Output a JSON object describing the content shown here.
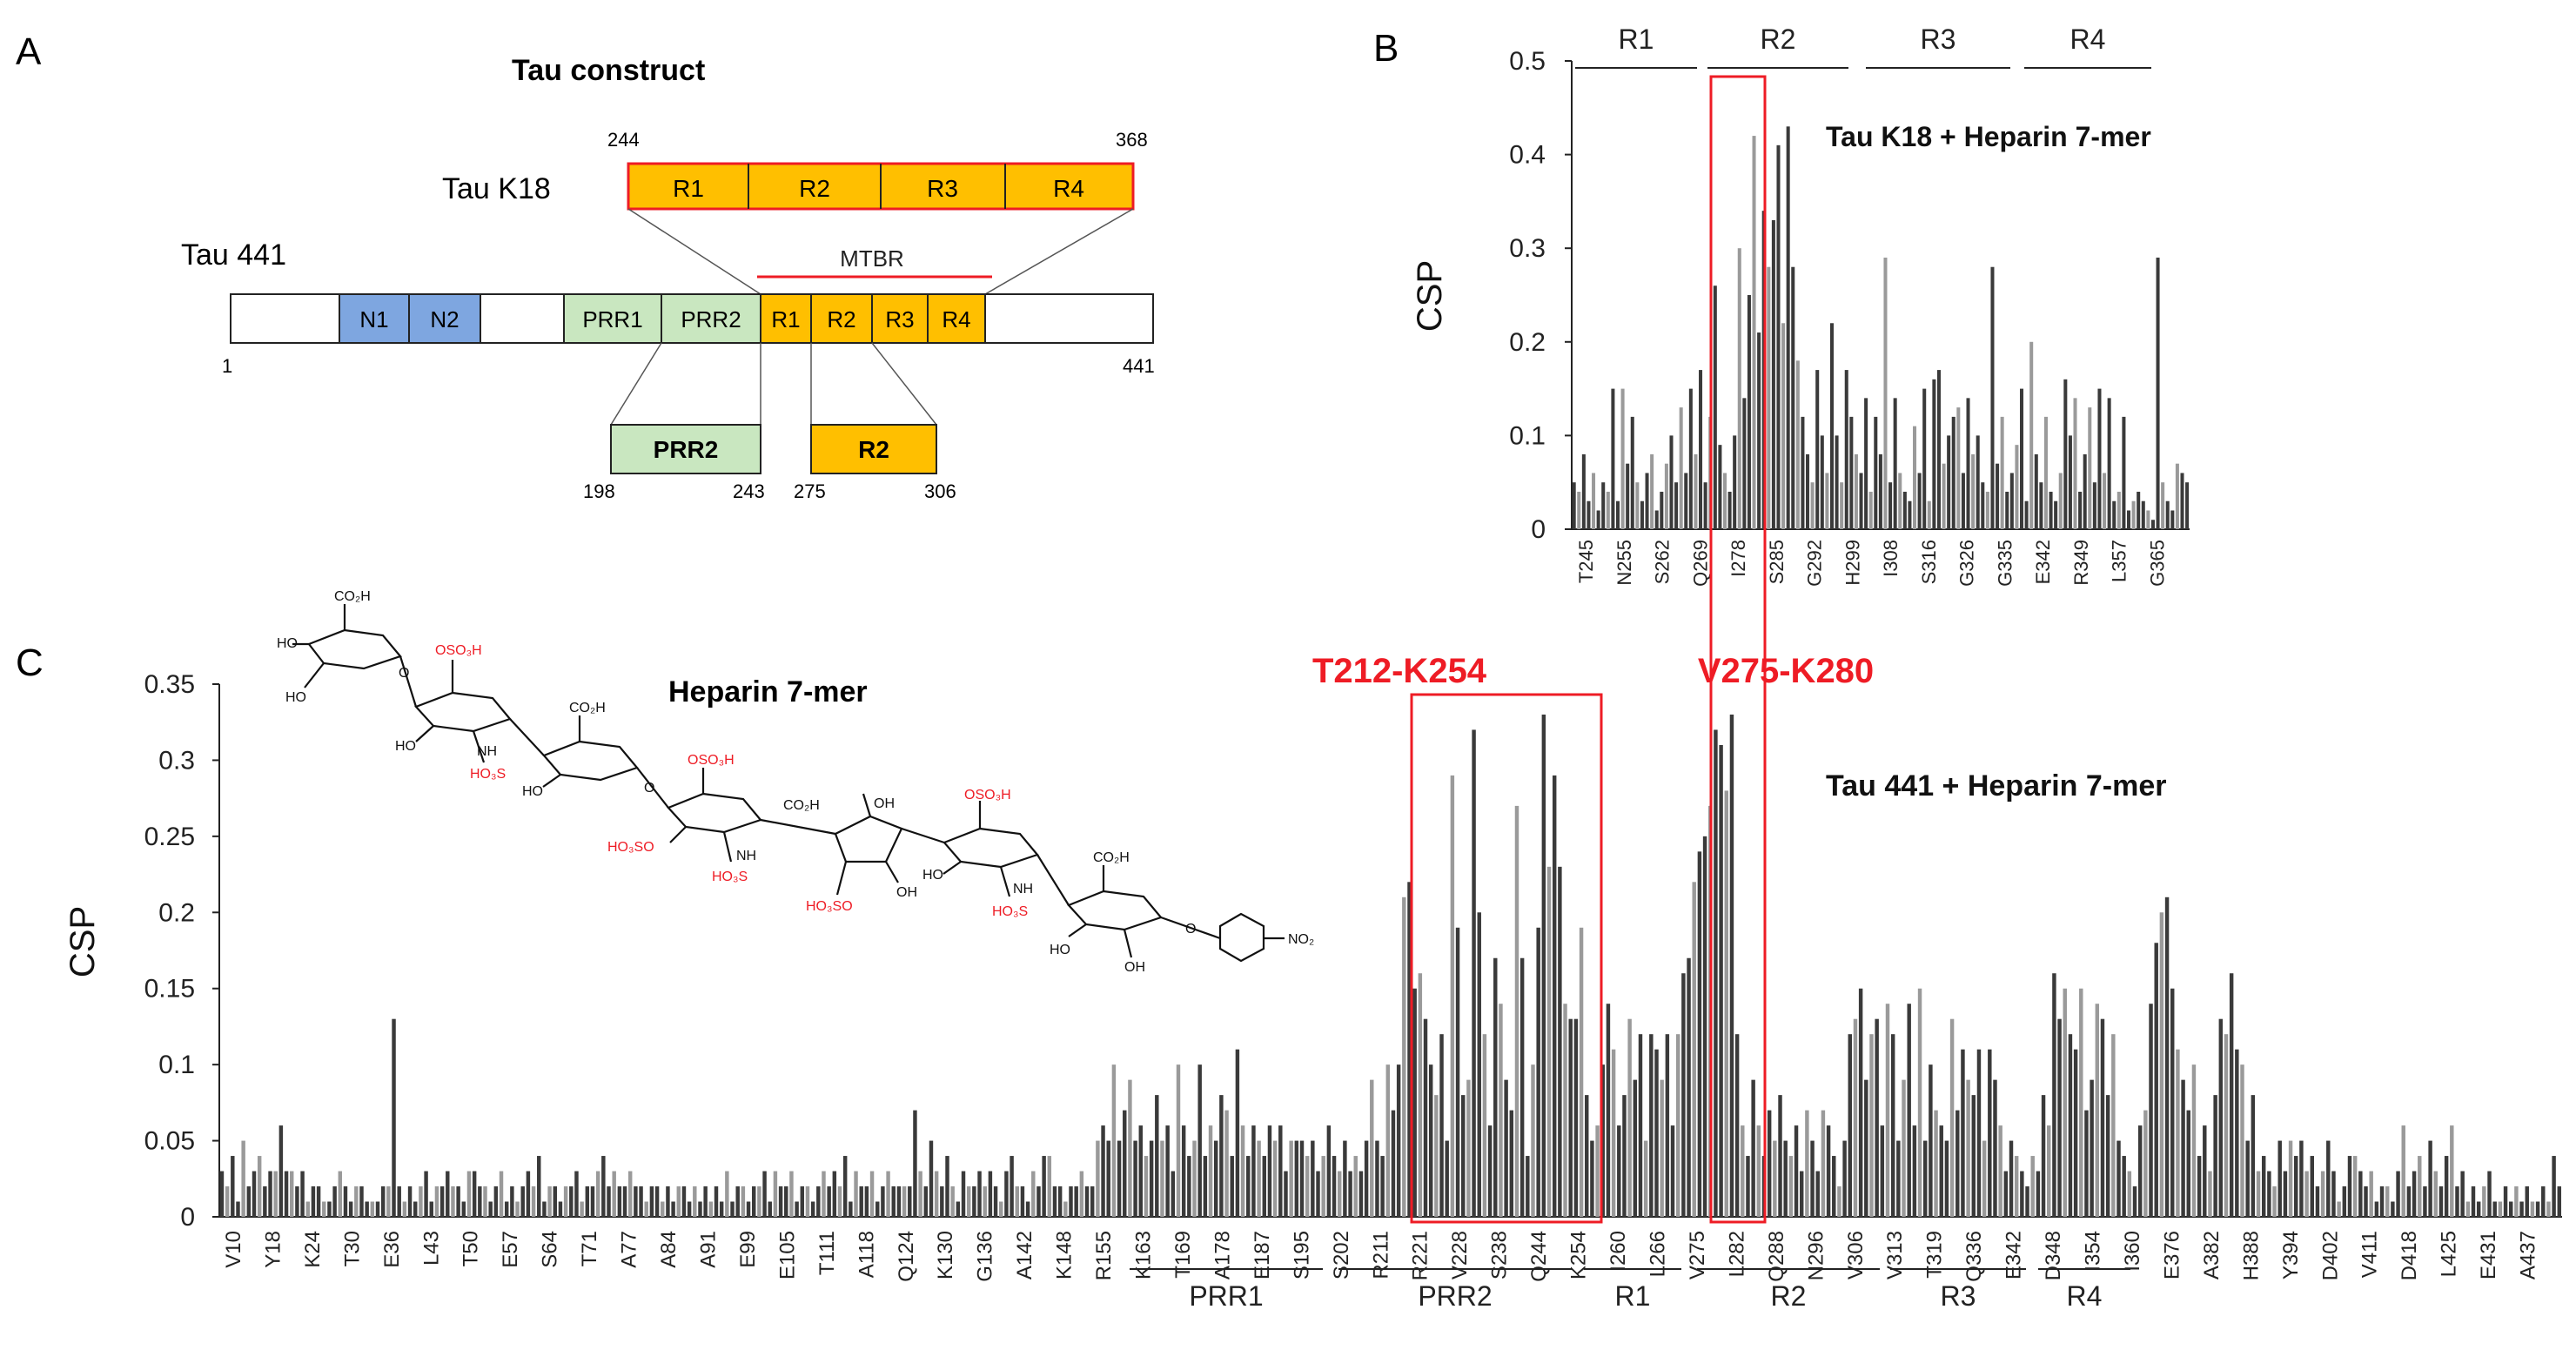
{
  "panel_a": {
    "letter": "A",
    "title": "Tau construct",
    "k18": {
      "label": "Tau K18",
      "start": "244",
      "end": "368",
      "segments": [
        "R1",
        "R2",
        "R3",
        "R4"
      ]
    },
    "tau441": {
      "label": "Tau 441",
      "start": "1",
      "end": "441",
      "domains": [
        "N1",
        "N2",
        "PRR1",
        "PRR2",
        "R1",
        "R2",
        "R3",
        "R4"
      ],
      "mtbr": "MTBR"
    },
    "prr2": {
      "label": "PRR2",
      "start": "198",
      "end": "243"
    },
    "r2": {
      "label": "R2",
      "start": "275",
      "end": "306"
    }
  },
  "panel_b_letter": "B",
  "panel_c_letter": "C",
  "heparin_label": "Heparin 7-mer",
  "structure_labels": {
    "co2h": "CO₂H",
    "oso3h": "OSO₃H",
    "ho3s": "HO₃S",
    "ho3so": "HO₃SO",
    "nh": "NH",
    "ho": "HO",
    "oh": "OH",
    "no2": "NO₂",
    "o": "O"
  },
  "highlights": {
    "t212": "T212-K254",
    "v275": "V275-K280"
  },
  "colors": {
    "accent": "#ee1c25",
    "orange": "#ffbf00",
    "blue": "#7ea6e0",
    "green": "#c9e7c0",
    "bar_dark": "#3a3a3a",
    "bar_light": "#9a9a9a"
  },
  "chart_data": [
    {
      "type": "bar",
      "title": "Tau K18 + Heparin 7-mer",
      "ylabel": "CSP",
      "ylim": [
        0,
        0.5
      ],
      "yticks": [
        "0",
        "0.1",
        "0.2",
        "0.3",
        "0.4",
        "0.5"
      ],
      "tick_labels": [
        "T245",
        "N255",
        "S262",
        "Q269",
        "I278",
        "S285",
        "G292",
        "H299",
        "I308",
        "S316",
        "G326",
        "G335",
        "E342",
        "R349",
        "L357",
        "G365"
      ],
      "regions": [
        "R1",
        "R2",
        "R3",
        "R4"
      ],
      "values": [
        0.05,
        0.04,
        0.08,
        0.03,
        0.06,
        0.02,
        0.05,
        0.04,
        0.15,
        0.03,
        0.15,
        0.07,
        0.12,
        0.05,
        0.03,
        0.06,
        0.08,
        0.02,
        0.04,
        0.07,
        0.1,
        0.05,
        0.13,
        0.06,
        0.15,
        0.08,
        0.17,
        0.05,
        0.12,
        0.26,
        0.09,
        0.06,
        0.04,
        0.1,
        0.3,
        0.14,
        0.25,
        0.42,
        0.21,
        0.34,
        0.28,
        0.33,
        0.41,
        0.22,
        0.43,
        0.28,
        0.18,
        0.12,
        0.08,
        0.05,
        0.17,
        0.1,
        0.06,
        0.22,
        0.1,
        0.05,
        0.17,
        0.12,
        0.08,
        0.06,
        0.14,
        0.04,
        0.12,
        0.08,
        0.29,
        0.05,
        0.14,
        0.06,
        0.04,
        0.03,
        0.11,
        0.06,
        0.15,
        0.03,
        0.16,
        0.17,
        0.07,
        0.1,
        0.12,
        0.13,
        0.06,
        0.14,
        0.08,
        0.1,
        0.05,
        0.04,
        0.28,
        0.07,
        0.12,
        0.04,
        0.06,
        0.09,
        0.15,
        0.03,
        0.2,
        0.08,
        0.05,
        0.12,
        0.04,
        0.03,
        0.06,
        0.16,
        0.1,
        0.14,
        0.04,
        0.08,
        0.13,
        0.05,
        0.15,
        0.06,
        0.14,
        0.03,
        0.04,
        0.12,
        0.02,
        0.03,
        0.04,
        0.03,
        0.02,
        0.01,
        0.29,
        0.05,
        0.03,
        0.02,
        0.07,
        0.06,
        0.05
      ]
    },
    {
      "type": "bar",
      "title": "Tau 441 + Heparin 7-mer",
      "ylabel": "CSP",
      "ylim": [
        0,
        0.35
      ],
      "yticks": [
        "0",
        "0.05",
        "0.1",
        "0.15",
        "0.2",
        "0.25",
        "0.3",
        "0.35"
      ],
      "tick_labels": [
        "V10",
        "Y18",
        "K24",
        "T30",
        "E36",
        "L43",
        "T50",
        "E57",
        "S64",
        "T71",
        "A77",
        "A84",
        "A91",
        "E99",
        "E105",
        "T111",
        "A118",
        "Q124",
        "K130",
        "G136",
        "A142",
        "K148",
        "R155",
        "K163",
        "T169",
        "A178",
        "E187",
        "S195",
        "S202",
        "R211",
        "R221",
        "V228",
        "S238",
        "Q244",
        "K254",
        "I260",
        "L266",
        "V275",
        "L282",
        "Q288",
        "N296",
        "V306",
        "V313",
        "T319",
        "Q336",
        "E342",
        "D348",
        "I354",
        "I360",
        "E376",
        "A382",
        "H388",
        "Y394",
        "D402",
        "V411",
        "D418",
        "L425",
        "E431",
        "A437"
      ],
      "regions": [
        "PRR1",
        "PRR2",
        "R1",
        "R2",
        "R3",
        "R4"
      ],
      "values": [
        0.03,
        0.02,
        0.04,
        0.01,
        0.05,
        0.02,
        0.03,
        0.04,
        0.02,
        0.03,
        0.03,
        0.06,
        0.03,
        0.03,
        0.02,
        0.03,
        0.01,
        0.02,
        0.02,
        0.01,
        0.01,
        0.02,
        0.03,
        0.02,
        0.01,
        0.02,
        0.02,
        0.01,
        0.01,
        0.01,
        0.02,
        0.02,
        0.13,
        0.02,
        0.01,
        0.02,
        0.01,
        0.02,
        0.03,
        0.01,
        0.02,
        0.02,
        0.03,
        0.02,
        0.02,
        0.01,
        0.03,
        0.03,
        0.02,
        0.02,
        0.01,
        0.02,
        0.03,
        0.01,
        0.02,
        0.01,
        0.02,
        0.03,
        0.02,
        0.04,
        0.01,
        0.02,
        0.02,
        0.01,
        0.02,
        0.02,
        0.03,
        0.01,
        0.02,
        0.02,
        0.03,
        0.04,
        0.02,
        0.03,
        0.02,
        0.02,
        0.03,
        0.02,
        0.02,
        0.01,
        0.02,
        0.02,
        0.01,
        0.02,
        0.01,
        0.02,
        0.02,
        0.01,
        0.02,
        0.01,
        0.02,
        0.01,
        0.02,
        0.01,
        0.03,
        0.01,
        0.02,
        0.02,
        0.01,
        0.02,
        0.02,
        0.03,
        0.01,
        0.03,
        0.02,
        0.02,
        0.03,
        0.01,
        0.02,
        0.02,
        0.01,
        0.02,
        0.03,
        0.02,
        0.03,
        0.02,
        0.04,
        0.01,
        0.03,
        0.02,
        0.02,
        0.03,
        0.01,
        0.02,
        0.03,
        0.02,
        0.02,
        0.02,
        0.02,
        0.07,
        0.03,
        0.02,
        0.05,
        0.03,
        0.02,
        0.04,
        0.02,
        0.01,
        0.03,
        0.02,
        0.02,
        0.03,
        0.02,
        0.03,
        0.02,
        0.01,
        0.03,
        0.04,
        0.02,
        0.02,
        0.01,
        0.03,
        0.02,
        0.04,
        0.04,
        0.02,
        0.02,
        0.01,
        0.02,
        0.02,
        0.03,
        0.02,
        0.02,
        0.05,
        0.06,
        0.05,
        0.1,
        0.05,
        0.07,
        0.09,
        0.05,
        0.06,
        0.04,
        0.05,
        0.08,
        0.05,
        0.06,
        0.03,
        0.1,
        0.06,
        0.04,
        0.05,
        0.1,
        0.04,
        0.06,
        0.05,
        0.08,
        0.07,
        0.04,
        0.11,
        0.06,
        0.04,
        0.06,
        0.05,
        0.04,
        0.06,
        0.05,
        0.06,
        0.03,
        0.05,
        0.05,
        0.05,
        0.04,
        0.05,
        0.03,
        0.04,
        0.06,
        0.04,
        0.03,
        0.05,
        0.03,
        0.04,
        0.03,
        0.05,
        0.09,
        0.05,
        0.04,
        0.1,
        0.07,
        0.1,
        0.21,
        0.22,
        0.15,
        0.16,
        0.13,
        0.1,
        0.08,
        0.12,
        0.05,
        0.29,
        0.19,
        0.08,
        0.09,
        0.32,
        0.2,
        0.12,
        0.06,
        0.17,
        0.14,
        0.09,
        0.07,
        0.27,
        0.17,
        0.04,
        0.1,
        0.19,
        0.33,
        0.23,
        0.29,
        0.23,
        0.14,
        0.13,
        0.13,
        0.19,
        0.08,
        0.05,
        0.06,
        0.1,
        0.14,
        0.11,
        0.06,
        0.08,
        0.13,
        0.09,
        0.12,
        0.05,
        0.12,
        0.11,
        0.09,
        0.12,
        0.06,
        0.12,
        0.16,
        0.17,
        0.22,
        0.24,
        0.25,
        0.27,
        0.32,
        0.31,
        0.28,
        0.33,
        0.12,
        0.06,
        0.04,
        0.09,
        0.06,
        0.04,
        0.07,
        0.05,
        0.08,
        0.05,
        0.04,
        0.06,
        0.03,
        0.07,
        0.05,
        0.03,
        0.07,
        0.06,
        0.04,
        0.02,
        0.05,
        0.12,
        0.13,
        0.15,
        0.09,
        0.12,
        0.13,
        0.06,
        0.14,
        0.12,
        0.05,
        0.09,
        0.14,
        0.06,
        0.15,
        0.05,
        0.1,
        0.07,
        0.06,
        0.05,
        0.13,
        0.07,
        0.11,
        0.09,
        0.08,
        0.11,
        0.05,
        0.11,
        0.09,
        0.06,
        0.03,
        0.05,
        0.04,
        0.03,
        0.02,
        0.04,
        0.03,
        0.08,
        0.06,
        0.16,
        0.13,
        0.15,
        0.12,
        0.11,
        0.15,
        0.07,
        0.09,
        0.14,
        0.13,
        0.08,
        0.12,
        0.05,
        0.04,
        0.03,
        0.02,
        0.06,
        0.07,
        0.14,
        0.18,
        0.2,
        0.21,
        0.15,
        0.11,
        0.09,
        0.07,
        0.1,
        0.04,
        0.06,
        0.03,
        0.08,
        0.13,
        0.12,
        0.16,
        0.11,
        0.1,
        0.05,
        0.08,
        0.03,
        0.04,
        0.03,
        0.02,
        0.05,
        0.03,
        0.05,
        0.04,
        0.05,
        0.03,
        0.04,
        0.02,
        0.03,
        0.05,
        0.03,
        0.01,
        0.02,
        0.04,
        0.04,
        0.03,
        0.02,
        0.03,
        0.01,
        0.02,
        0.02,
        0.01,
        0.03,
        0.06,
        0.02,
        0.03,
        0.04,
        0.02,
        0.05,
        0.03,
        0.02,
        0.04,
        0.06,
        0.02,
        0.03,
        0.01,
        0.02,
        0.01,
        0.02,
        0.03,
        0.01,
        0.01,
        0.02,
        0.01,
        0.02,
        0.01,
        0.02,
        0.01,
        0.01,
        0.02,
        0.01,
        0.04,
        0.02
      ]
    }
  ]
}
